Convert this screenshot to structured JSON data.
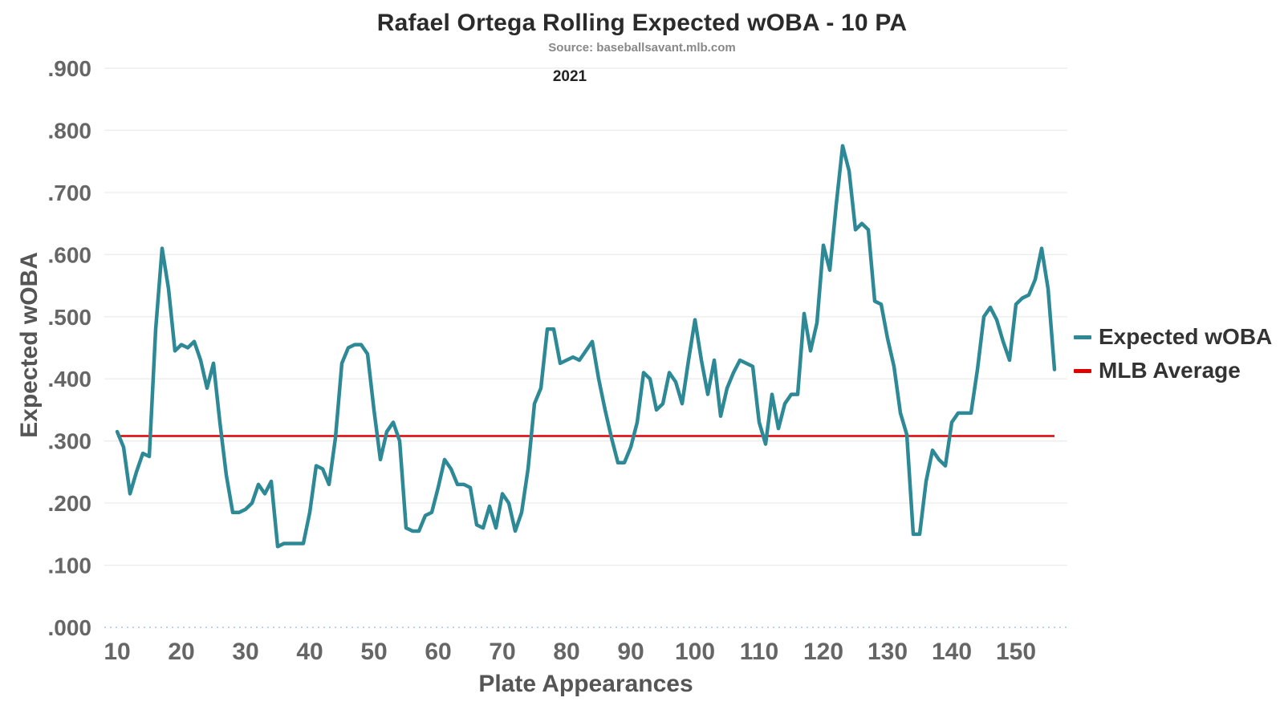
{
  "header": {
    "title": "Rafael Ortega Rolling Expected wOBA - 10 PA",
    "subtitle": "Source: baseballsavant.mlb.com",
    "year": "2021"
  },
  "axes": {
    "y_title": "Expected wOBA",
    "x_title": "Plate Appearances"
  },
  "legend": [
    {
      "label": "Expected wOBA",
      "color": "#2e8996"
    },
    {
      "label": "MLB Average",
      "color": "#e00000"
    }
  ],
  "chart_data": {
    "type": "line",
    "title": "Rafael Ortega Rolling Expected wOBA - 10 PA",
    "subtitle": "Source: baseballsavant.mlb.com",
    "annotation": "2021",
    "xlabel": "Plate Appearances",
    "ylabel": "Expected wOBA",
    "x_range": [
      10,
      156
    ],
    "x_step": 1,
    "xlim": [
      8,
      158
    ],
    "ylim": [
      0,
      0.9
    ],
    "xticks": [
      10,
      20,
      30,
      40,
      50,
      60,
      70,
      80,
      90,
      100,
      110,
      120,
      130,
      140,
      150
    ],
    "ytick_values": [
      0,
      0.1,
      0.2,
      0.3,
      0.4,
      0.5,
      0.6,
      0.7,
      0.8,
      0.9
    ],
    "ytick_labels": [
      ".000",
      ".100",
      ".200",
      ".300",
      ".400",
      ".500",
      ".600",
      ".700",
      ".800",
      ".900"
    ],
    "mlb_average": 0.308,
    "grid": true,
    "legend_position": "right",
    "series": [
      {
        "name": "Expected wOBA",
        "values": [
          0.315,
          0.29,
          0.215,
          0.25,
          0.28,
          0.275,
          0.48,
          0.61,
          0.545,
          0.445,
          0.455,
          0.45,
          0.46,
          0.43,
          0.385,
          0.425,
          0.33,
          0.245,
          0.185,
          0.185,
          0.19,
          0.2,
          0.23,
          0.215,
          0.235,
          0.13,
          0.135,
          0.135,
          0.135,
          0.135,
          0.185,
          0.26,
          0.255,
          0.23,
          0.305,
          0.425,
          0.45,
          0.455,
          0.455,
          0.44,
          0.35,
          0.27,
          0.315,
          0.33,
          0.3,
          0.16,
          0.155,
          0.155,
          0.18,
          0.185,
          0.225,
          0.27,
          0.255,
          0.23,
          0.23,
          0.225,
          0.165,
          0.16,
          0.195,
          0.16,
          0.215,
          0.2,
          0.155,
          0.185,
          0.255,
          0.36,
          0.385,
          0.48,
          0.48,
          0.425,
          0.43,
          0.435,
          0.43,
          0.445,
          0.46,
          0.4,
          0.35,
          0.305,
          0.265,
          0.265,
          0.29,
          0.33,
          0.41,
          0.4,
          0.35,
          0.36,
          0.41,
          0.395,
          0.36,
          0.43,
          0.495,
          0.43,
          0.375,
          0.43,
          0.34,
          0.385,
          0.41,
          0.43,
          0.425,
          0.42,
          0.33,
          0.295,
          0.375,
          0.32,
          0.36,
          0.375,
          0.375,
          0.505,
          0.445,
          0.49,
          0.615,
          0.575,
          0.68,
          0.775,
          0.735,
          0.64,
          0.65,
          0.64,
          0.525,
          0.52,
          0.465,
          0.42,
          0.345,
          0.31,
          0.15,
          0.15,
          0.235,
          0.285,
          0.27,
          0.26,
          0.33,
          0.345,
          0.345,
          0.345,
          0.415,
          0.5,
          0.515,
          0.495,
          0.46,
          0.43,
          0.52,
          0.53,
          0.535,
          0.56,
          0.61,
          0.545,
          0.415
        ]
      }
    ],
    "colors": {
      "line": "#2e8996",
      "mlb_average": "#e00000",
      "grid": "#ededed",
      "zero_line": "#bcd4e6"
    }
  }
}
